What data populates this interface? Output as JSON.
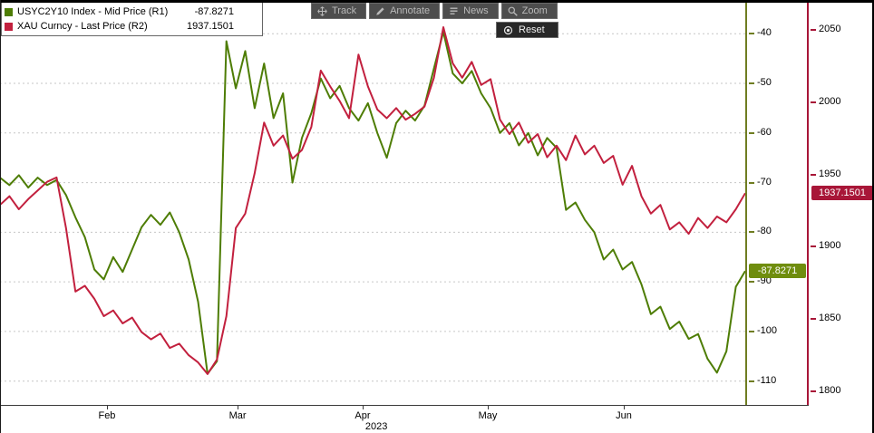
{
  "legend": {
    "items": [
      {
        "label": "USYC2Y10 Index - Mid Price (R1)",
        "value": "-87.8271",
        "color": "#4e7d05"
      },
      {
        "label": "XAU Curncy - Last Price (R2)",
        "value": "1937.1501",
        "color": "#c2203e"
      }
    ]
  },
  "toolbar": {
    "buttons": [
      {
        "label": "Track",
        "icon": "track-icon"
      },
      {
        "label": "Annotate",
        "icon": "annotate-icon"
      },
      {
        "label": "News",
        "icon": "news-icon"
      },
      {
        "label": "Zoom",
        "icon": "zoom-icon"
      }
    ],
    "reset_label": "Reset"
  },
  "chart_data": {
    "type": "line",
    "x_axis": {
      "month_labels": [
        {
          "label": "Feb",
          "f": 0.1435
        },
        {
          "label": "Mar",
          "f": 0.3188
        },
        {
          "label": "Apr",
          "f": 0.4866
        },
        {
          "label": "May",
          "f": 0.6545
        },
        {
          "label": "Jun",
          "f": 0.837
        }
      ],
      "year": "2023",
      "year_f": 0.505
    },
    "axes": {
      "r1": {
        "label": "USYC2Y10 Index - Mid Price (R1)",
        "color": "#6f7d21",
        "badge_color": "#6f8d0e",
        "ticks": [
          -40,
          -50,
          -60,
          -70,
          -80,
          -90,
          -100,
          -110
        ],
        "ylim": [
          -114.8,
          -33.2
        ],
        "last_value": -87.8271,
        "last_label": "-87.8271"
      },
      "r2": {
        "label": "XAU Curncy - Last Price (R2)",
        "color": "#a81638",
        "badge_color": "#a81638",
        "ticks": [
          2050,
          2000,
          1950,
          1900,
          1850,
          1800
        ],
        "ylim": [
          1790.6,
          2070.8
        ],
        "last_value": 1937.1501,
        "last_label": "1937.1501"
      }
    },
    "series": [
      {
        "name": "USYC2Y10 Index - Mid Price (R1)",
        "axis": "r1",
        "color": "#4e7d05",
        "values": [
          -69,
          -70.5,
          -68.5,
          -71,
          -69,
          -70.5,
          -69.5,
          -72.5,
          -77,
          -81,
          -87.5,
          -89.5,
          -85,
          -88,
          -83.5,
          -79,
          -76.5,
          -78.5,
          -76,
          -80,
          -85.5,
          -94,
          -108.5,
          -106,
          -41.5,
          -51,
          -43.5,
          -55,
          -46,
          -57,
          -52,
          -70,
          -61,
          -56,
          -49,
          -53,
          -50.5,
          -55,
          -57.5,
          -54,
          -60,
          -65,
          -58,
          -55.5,
          -57.5,
          -54.5,
          -47,
          -39.6,
          -48,
          -50,
          -47.5,
          -52,
          -55,
          -60,
          -58,
          -62.5,
          -60,
          -64.5,
          -61,
          -63,
          -75.5,
          -74,
          -77.5,
          -80,
          -85.5,
          -83.5,
          -87.5,
          -86,
          -90.5,
          -96.5,
          -95,
          -99.5,
          -98,
          -101.5,
          -100.5,
          -105.5,
          -108.3,
          -104,
          -91,
          -87.8271
        ]
      },
      {
        "name": "XAU Curncy - Last Price (R2)",
        "axis": "r2",
        "color": "#c2203e",
        "values": [
          1929,
          1935,
          1926,
          1933,
          1939,
          1945,
          1948,
          1913,
          1869,
          1873,
          1864,
          1852,
          1856,
          1847,
          1851,
          1841,
          1836,
          1840,
          1830,
          1833,
          1825,
          1820,
          1812,
          1822,
          1852,
          1913,
          1923,
          1951,
          1986,
          1970,
          1977,
          1961,
          1967,
          1983,
          2022,
          2011,
          2001,
          1989,
          2033,
          2011,
          1995,
          1989,
          1996,
          1988,
          1992,
          1997,
          2017,
          2052,
          2027,
          2017,
          2028,
          2012,
          2016,
          1988,
          1978,
          1986,
          1972,
          1978,
          1962,
          1970,
          1960,
          1977,
          1964,
          1970,
          1958,
          1963,
          1943,
          1956,
          1935,
          1923,
          1929,
          1912,
          1917,
          1909,
          1920,
          1913,
          1921,
          1917,
          1926,
          1937.1501
        ]
      }
    ]
  }
}
